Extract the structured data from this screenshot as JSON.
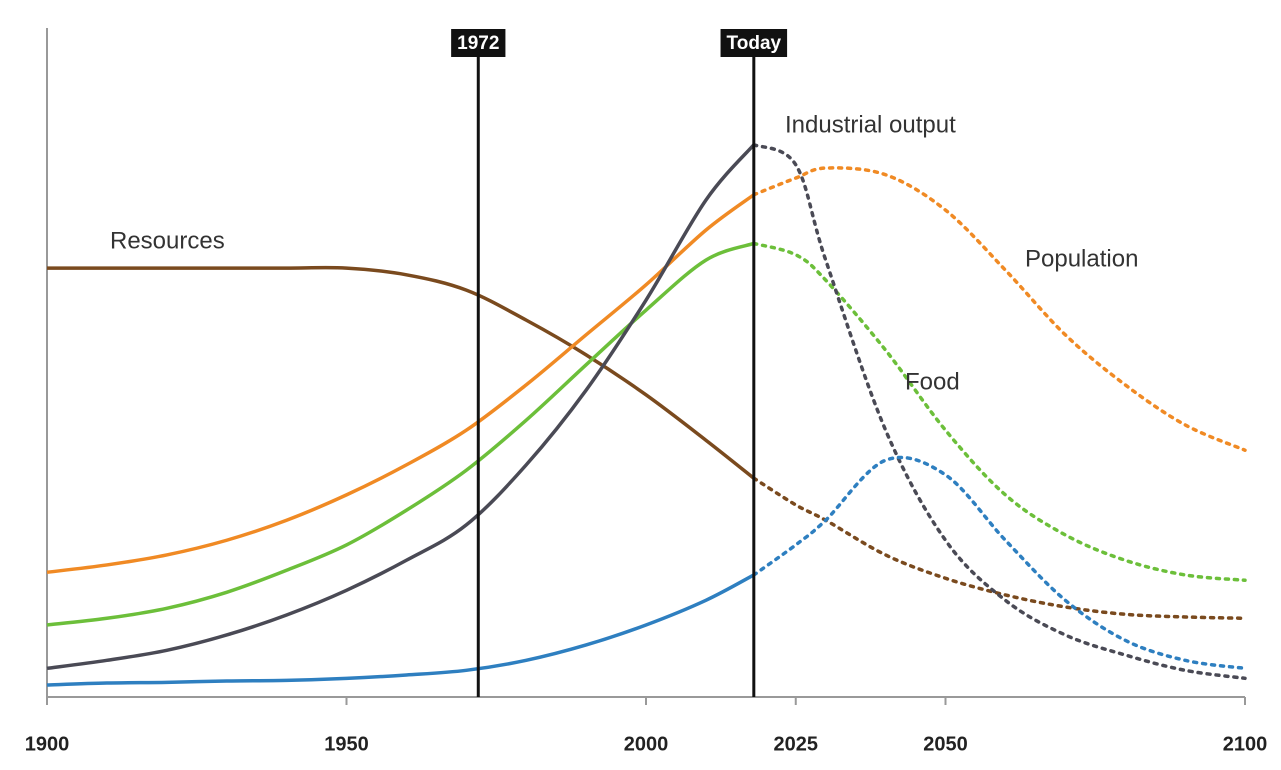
{
  "chart_data": {
    "type": "line",
    "x": [
      1900,
      1910,
      1920,
      1930,
      1940,
      1950,
      1960,
      1970,
      1980,
      1990,
      2000,
      2010,
      2018,
      2025,
      2030,
      2040,
      2050,
      2060,
      2070,
      2080,
      2090,
      2100
    ],
    "xlim": [
      1900,
      2100
    ],
    "xticks": [
      1900,
      1950,
      2000,
      2025,
      2050,
      2100
    ],
    "ylim": [
      0,
      100
    ],
    "markers": [
      {
        "x": 1972,
        "label": "1972"
      },
      {
        "x": 2018,
        "label": "Today"
      }
    ],
    "series": [
      {
        "name": "Resources",
        "color": "#7a4a1e",
        "values": [
          64.3,
          64.3,
          64.3,
          64.3,
          64.3,
          64.3,
          63.3,
          61,
          56.5,
          51.3,
          45.3,
          38.5,
          32.8,
          28.8,
          26.5,
          21.3,
          17.8,
          15.3,
          13.5,
          12.4,
          12,
          11.8
        ]
      },
      {
        "name": "Population",
        "color": "#f08a24",
        "values": [
          18.7,
          19.8,
          21.3,
          23.5,
          26.5,
          30.3,
          34.8,
          40,
          46.8,
          54.3,
          61.8,
          70,
          75.3,
          77.8,
          79.3,
          78.3,
          73,
          64,
          54.3,
          46.8,
          40.8,
          37
        ]
      },
      {
        "name": "Food",
        "color": "#6cbf3a",
        "values": [
          10.8,
          11.8,
          13.3,
          15.7,
          19,
          22.8,
          28,
          34,
          41.5,
          49.8,
          58,
          65.5,
          68,
          66.3,
          62.5,
          52,
          40,
          30.3,
          24.3,
          20.5,
          18.3,
          17.5
        ]
      },
      {
        "name": "Industrial output",
        "color": "#4a4a55",
        "values": [
          4.3,
          5.5,
          7,
          9.3,
          12.3,
          16,
          20.5,
          25.8,
          34.8,
          46,
          59.5,
          74.5,
          82.8,
          79.8,
          65.5,
          40,
          23.5,
          14.5,
          9.3,
          6.3,
          4,
          2.8
        ]
      },
      {
        "color": "#2e7fc0",
        "values": [
          1.8,
          2.1,
          2.2,
          2.4,
          2.5,
          2.8,
          3.3,
          4,
          5.5,
          7.8,
          10.8,
          14.5,
          18.3,
          22.8,
          26.5,
          35.5,
          33.3,
          23.5,
          14.5,
          8.5,
          5.5,
          4.3
        ]
      }
    ]
  }
}
